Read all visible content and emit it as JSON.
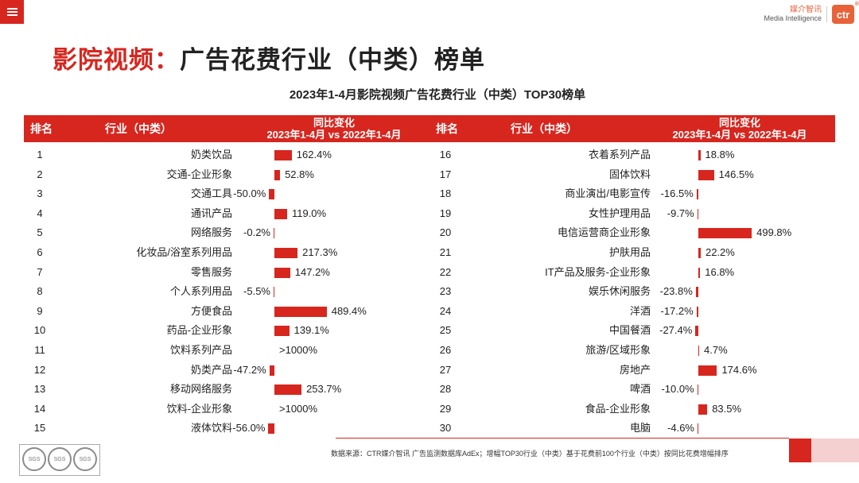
{
  "header": {
    "menu_icon": "hamburger-menu-icon",
    "logo_cn": "媒介智讯",
    "logo_en": "Media Intelligence",
    "logo_mark": "ctr",
    "logo_reg": "®"
  },
  "page_title_accent": "影院视频：",
  "page_title_rest": "广告花费行业（中类）榜单",
  "chart_data": {
    "type": "table",
    "title": "2023年1-4月影院视频广告花费行业（中类）TOP30榜单",
    "columns": {
      "rank": "排名",
      "industry": "行业（中类）",
      "change_line1": "同比变化",
      "change_line2": "2023年1-4月 vs 2022年1-4月"
    },
    "rows": [
      {
        "rank": "1",
        "industry": "奶类饮品",
        "value": 162.4,
        "label": "162.4%"
      },
      {
        "rank": "2",
        "industry": "交通-企业形象",
        "value": 52.8,
        "label": "52.8%"
      },
      {
        "rank": "3",
        "industry": "交通工具",
        "value": -50.0,
        "label": "-50.0%"
      },
      {
        "rank": "4",
        "industry": "通讯产品",
        "value": 119.0,
        "label": "119.0%"
      },
      {
        "rank": "5",
        "industry": "网络服务",
        "value": -0.2,
        "label": "-0.2%"
      },
      {
        "rank": "6",
        "industry": "化妆品/浴室系列用品",
        "value": 217.3,
        "label": "217.3%"
      },
      {
        "rank": "7",
        "industry": "零售服务",
        "value": 147.2,
        "label": "147.2%"
      },
      {
        "rank": "8",
        "industry": "个人系列用品",
        "value": -5.5,
        "label": "-5.5%"
      },
      {
        "rank": "9",
        "industry": "方便食品",
        "value": 489.4,
        "label": "489.4%"
      },
      {
        "rank": "10",
        "industry": "药品-企业形象",
        "value": 139.1,
        "label": "139.1%"
      },
      {
        "rank": "11",
        "industry": "饮料系列产品",
        "value": null,
        "label": ">1000%"
      },
      {
        "rank": "12",
        "industry": "奶类产品",
        "value": -47.2,
        "label": "-47.2%"
      },
      {
        "rank": "13",
        "industry": "移动网络服务",
        "value": 253.7,
        "label": "253.7%"
      },
      {
        "rank": "14",
        "industry": "饮料-企业形象",
        "value": null,
        "label": ">1000%"
      },
      {
        "rank": "15",
        "industry": "液体饮料",
        "value": -56.0,
        "label": "-56.0%"
      },
      {
        "rank": "16",
        "industry": "衣着系列产品",
        "value": 18.8,
        "label": "18.8%"
      },
      {
        "rank": "17",
        "industry": "固体饮料",
        "value": 146.5,
        "label": "146.5%"
      },
      {
        "rank": "18",
        "industry": "商业演出/电影宣传",
        "value": -16.5,
        "label": "-16.5%"
      },
      {
        "rank": "19",
        "industry": "女性护理用品",
        "value": -9.7,
        "label": "-9.7%"
      },
      {
        "rank": "20",
        "industry": "电信运营商企业形象",
        "value": 499.8,
        "label": "499.8%"
      },
      {
        "rank": "21",
        "industry": "护肤用品",
        "value": 22.2,
        "label": "22.2%"
      },
      {
        "rank": "22",
        "industry": "IT产品及服务-企业形象",
        "value": 16.8,
        "label": "16.8%"
      },
      {
        "rank": "23",
        "industry": "娱乐休闲服务",
        "value": -23.8,
        "label": "-23.8%"
      },
      {
        "rank": "24",
        "industry": "洋酒",
        "value": -17.2,
        "label": "-17.2%"
      },
      {
        "rank": "25",
        "industry": "中国餐酒",
        "value": -27.4,
        "label": "-27.4%"
      },
      {
        "rank": "26",
        "industry": "旅游/区域形象",
        "value": 4.7,
        "label": "4.7%"
      },
      {
        "rank": "27",
        "industry": "房地产",
        "value": 174.6,
        "label": "174.6%"
      },
      {
        "rank": "28",
        "industry": "啤酒",
        "value": -10.0,
        "label": "-10.0%"
      },
      {
        "rank": "29",
        "industry": "食品-企业形象",
        "value": 83.5,
        "label": "83.5%"
      },
      {
        "rank": "30",
        "industry": "电脑",
        "value": -4.6,
        "label": "-4.6%"
      }
    ],
    "bar_color": "#d7261e"
  },
  "footer": {
    "note": "数据来源：CTR媒介智讯 广告监测数据库AdEx；增幅TOP30行业（中类）基于花费前100个行业（中类）按同比花费增幅排序",
    "cert_label": "SGS"
  },
  "colors": {
    "accent": "#d7261e",
    "logo": "#e8633a"
  }
}
